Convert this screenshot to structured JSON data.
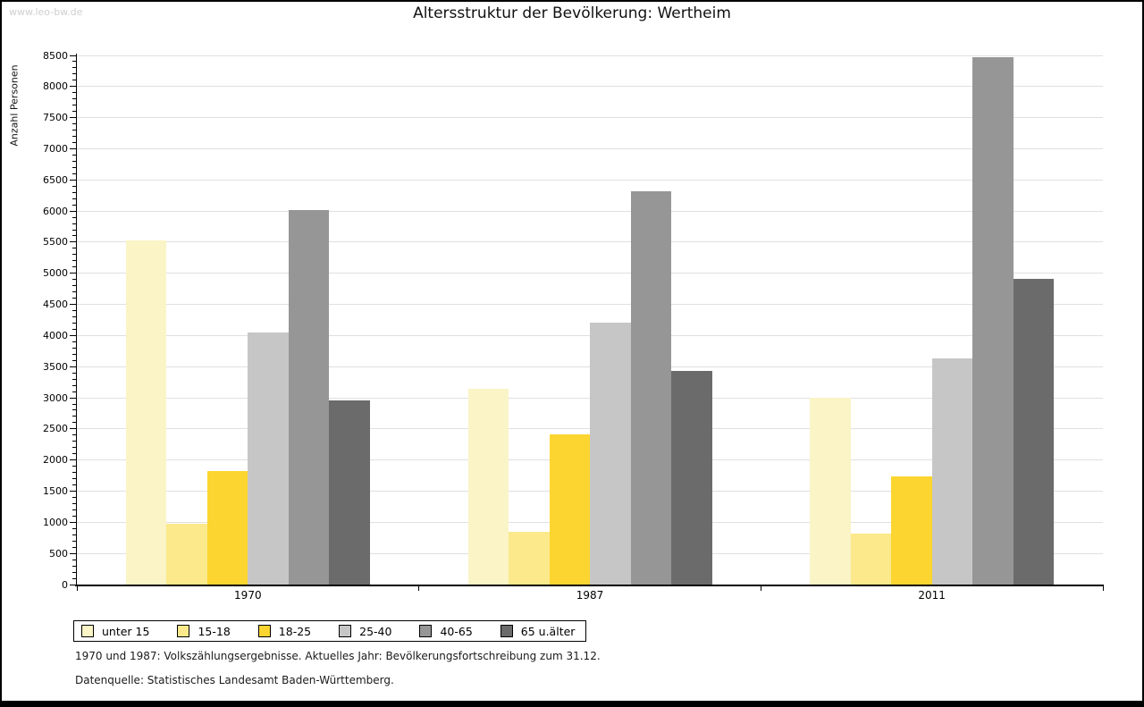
{
  "watermark": "www.leo-bw.de",
  "title": "Altersstruktur der Bevölkerung: Wertheim",
  "chart_data": {
    "type": "bar",
    "title": "Altersstruktur der Bevölkerung: Wertheim",
    "ylabel": "Anzahl Personen",
    "categories": [
      "1970",
      "1987",
      "2011"
    ],
    "series": [
      {
        "name": "unter 15",
        "color": "#faf4c6",
        "values": [
          5530,
          3145,
          3000
        ]
      },
      {
        "name": "15-18",
        "color": "#fbe98b",
        "values": [
          970,
          850,
          820
        ]
      },
      {
        "name": "18-25",
        "color": "#fcd530",
        "values": [
          1820,
          2415,
          1740
        ]
      },
      {
        "name": "25-40",
        "color": "#c6c6c6",
        "values": [
          4045,
          4210,
          3635
        ]
      },
      {
        "name": "40-65",
        "color": "#969696",
        "values": [
          6010,
          6320,
          8470
        ]
      },
      {
        "name": "65 u.älter",
        "color": "#6b6b6b",
        "values": [
          2965,
          3430,
          4915
        ]
      }
    ],
    "ylim": [
      0,
      8500
    ],
    "ytick_step": 500,
    "minor_tick_step": 100,
    "grid": true,
    "legend_position": "bottom-left",
    "gridline_color": "#e0e0e0"
  },
  "footnotes": [
    "1970 und 1987: Volkszählungsergebnisse. Aktuelles Jahr: Bevölkerungsfortschreibung zum 31.12.",
    "Datenquelle: Statistisches Landesamt Baden-Württemberg."
  ]
}
